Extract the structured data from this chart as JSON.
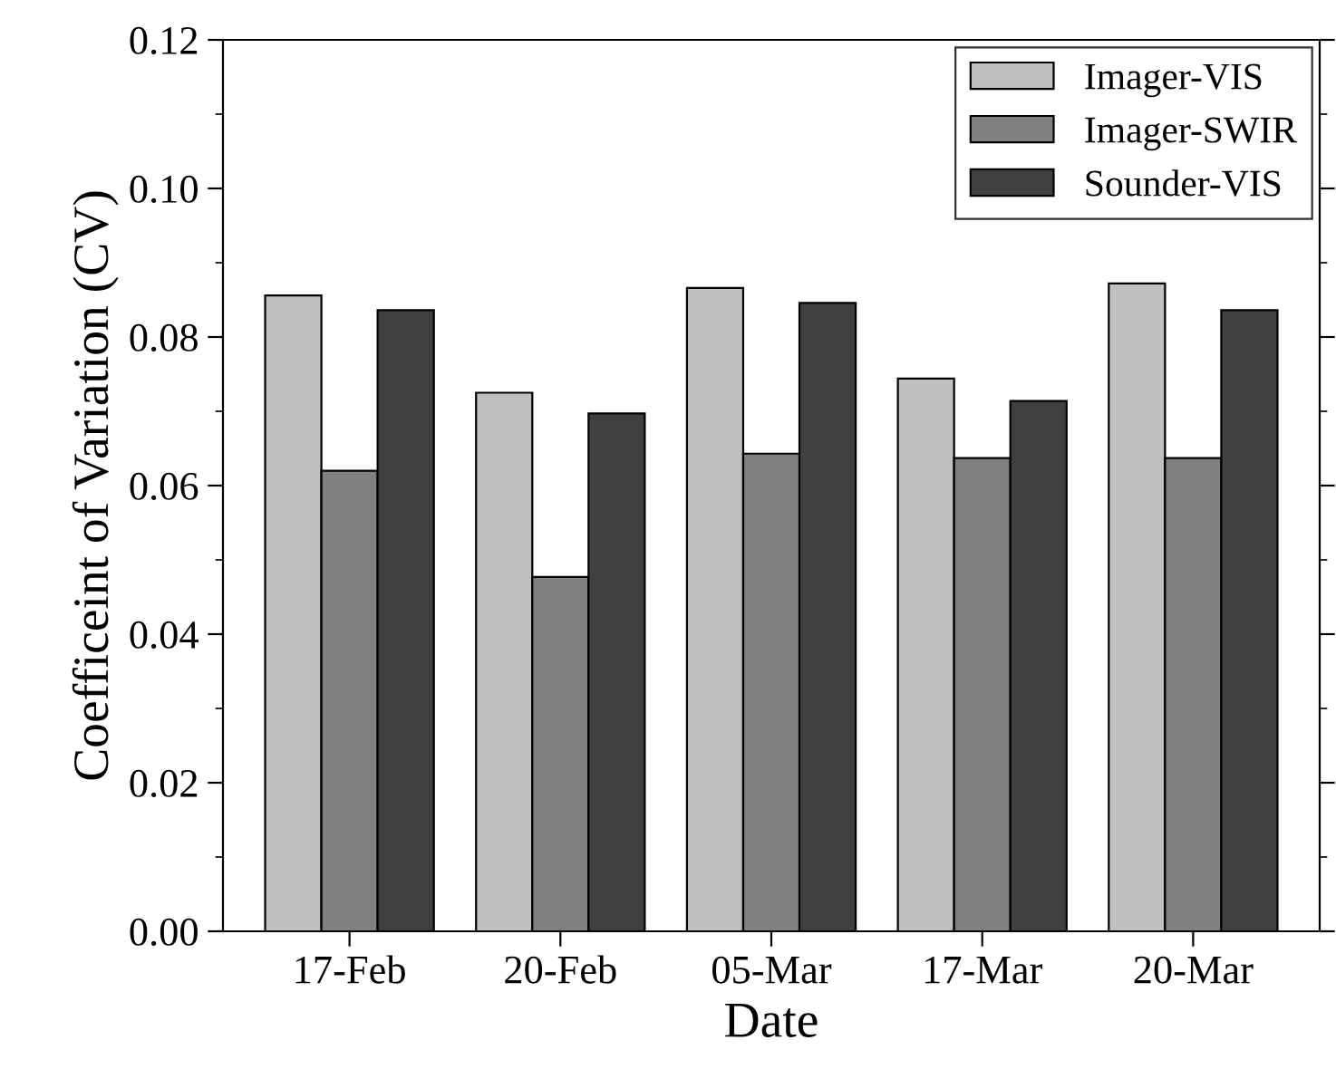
{
  "chart_data": {
    "type": "bar",
    "xlabel": "Date",
    "ylabel": "Coefficeint of Variation (CV)",
    "categories": [
      "17-Feb",
      "20-Feb",
      "05-Mar",
      "17-Mar",
      "20-Mar"
    ],
    "series": [
      {
        "name": "Imager-VIS",
        "color": "#c0c0c0",
        "values": [
          0.0856,
          0.0725,
          0.0866,
          0.0744,
          0.0872
        ]
      },
      {
        "name": "Imager-SWIR",
        "color": "#808080",
        "values": [
          0.062,
          0.0477,
          0.0643,
          0.0637,
          0.0637
        ]
      },
      {
        "name": "Sounder-VIS",
        "color": "#404040",
        "values": [
          0.0836,
          0.0697,
          0.0846,
          0.0714,
          0.0836
        ]
      }
    ],
    "ylim": [
      0,
      0.12
    ],
    "yticks": [
      {
        "value": 0,
        "label": "0.00"
      },
      {
        "value": 0.01,
        "label": null
      },
      {
        "value": 0.02,
        "label": "0.02"
      },
      {
        "value": 0.03,
        "label": null
      },
      {
        "value": 0.04,
        "label": "0.04"
      },
      {
        "value": 0.05,
        "label": null
      },
      {
        "value": 0.06,
        "label": "0.06"
      },
      {
        "value": 0.07,
        "label": null
      },
      {
        "value": 0.08,
        "label": "0.08"
      },
      {
        "value": 0.09,
        "label": null
      },
      {
        "value": 0.1,
        "label": "0.10"
      },
      {
        "value": 0.11,
        "label": null
      },
      {
        "value": 0.12,
        "label": "0.12"
      }
    ],
    "grid": false,
    "legend": "top right"
  }
}
